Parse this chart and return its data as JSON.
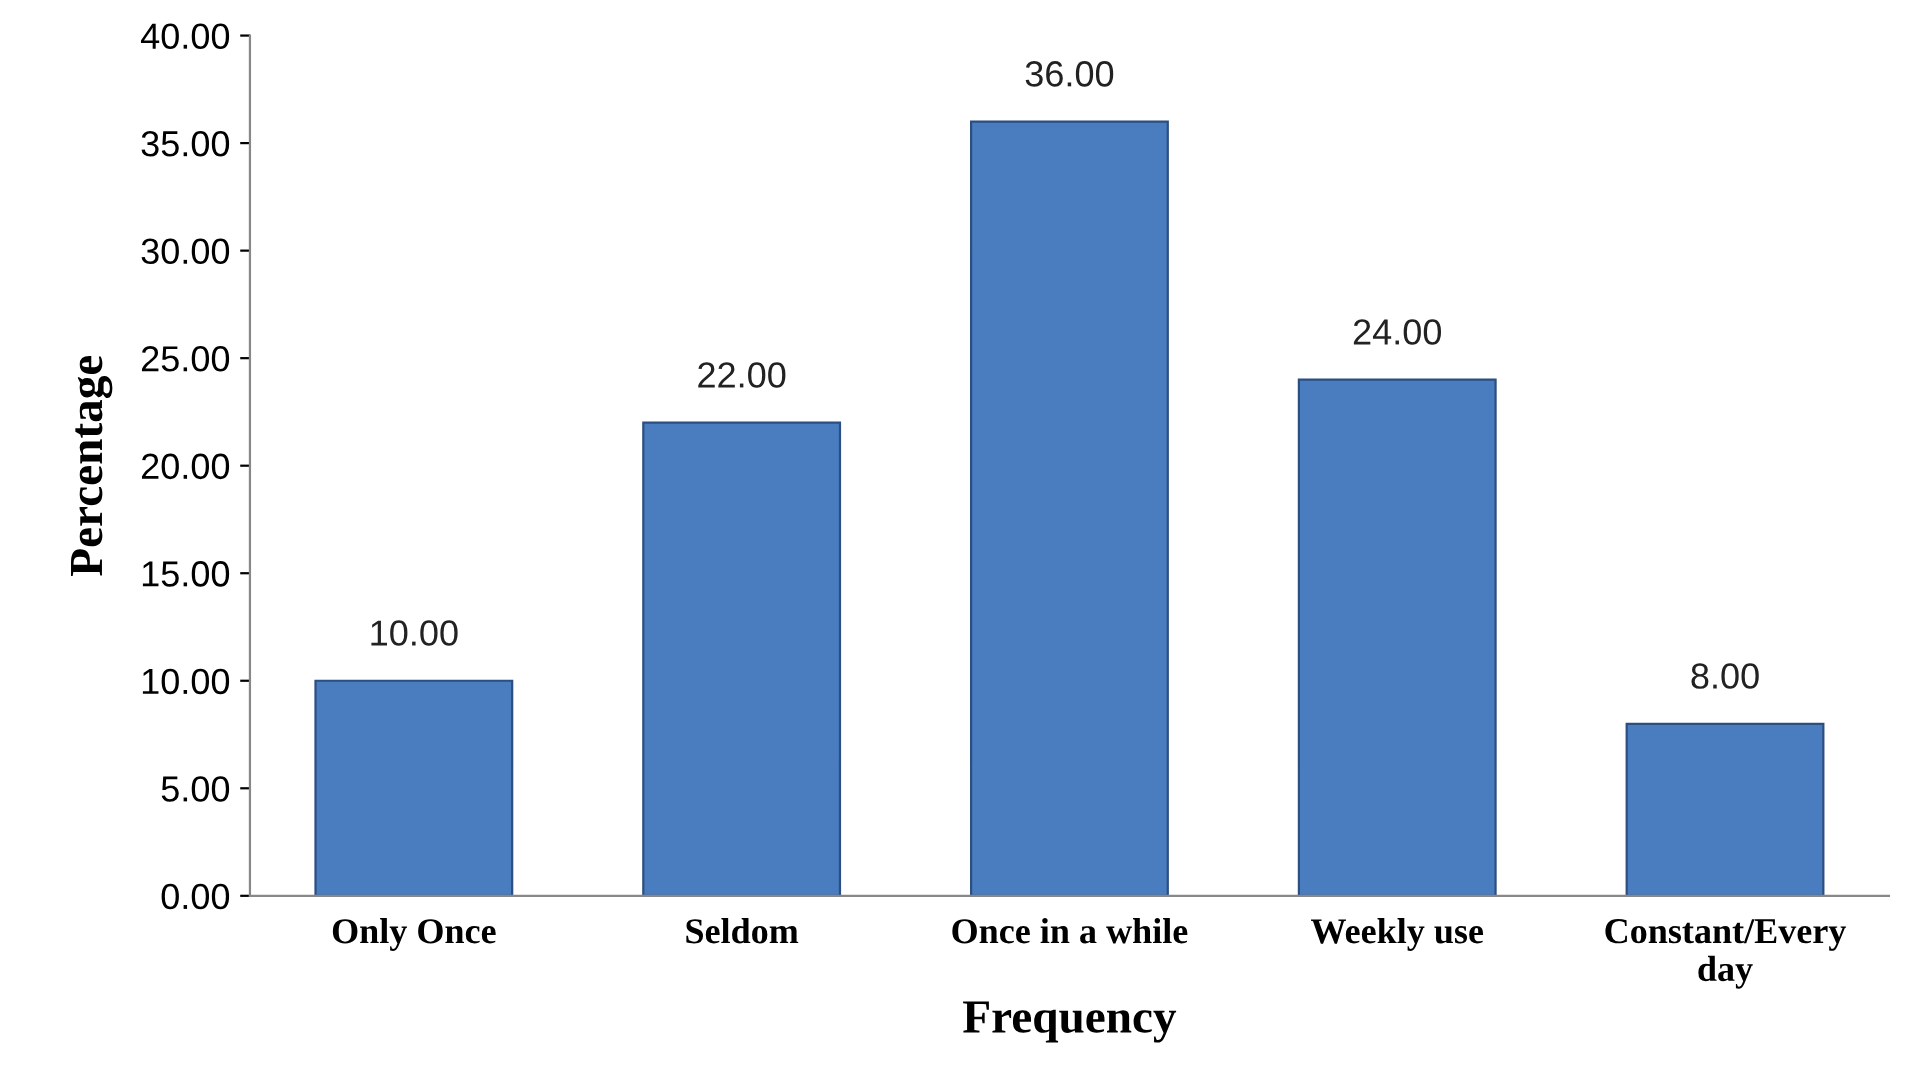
{
  "chart_data": {
    "type": "bar",
    "xlabel": "Frequency",
    "ylabel": "Percentage",
    "categories": [
      "Only Once",
      "Seldom",
      "Once in a while",
      "Weekly use",
      "Constant/Every day"
    ],
    "values": [
      10,
      22,
      36,
      24,
      8
    ],
    "value_labels": [
      "10.00",
      "22.00",
      "36.00",
      "24.00",
      "8.00"
    ],
    "color": "#4a7cc0",
    "ylim": [
      0,
      40
    ],
    "yticks": [
      {
        "value": 0,
        "label": "0.00"
      },
      {
        "value": 5,
        "label": "5.00"
      },
      {
        "value": 10,
        "label": "10.00"
      },
      {
        "value": 15,
        "label": "15.00"
      },
      {
        "value": 20,
        "label": "20.00"
      },
      {
        "value": 25,
        "label": "25.00"
      },
      {
        "value": 30,
        "label": "30.00"
      },
      {
        "value": 35,
        "label": "35.00"
      },
      {
        "value": 40,
        "label": "40.00"
      }
    ],
    "grid": false,
    "legend": false
  }
}
